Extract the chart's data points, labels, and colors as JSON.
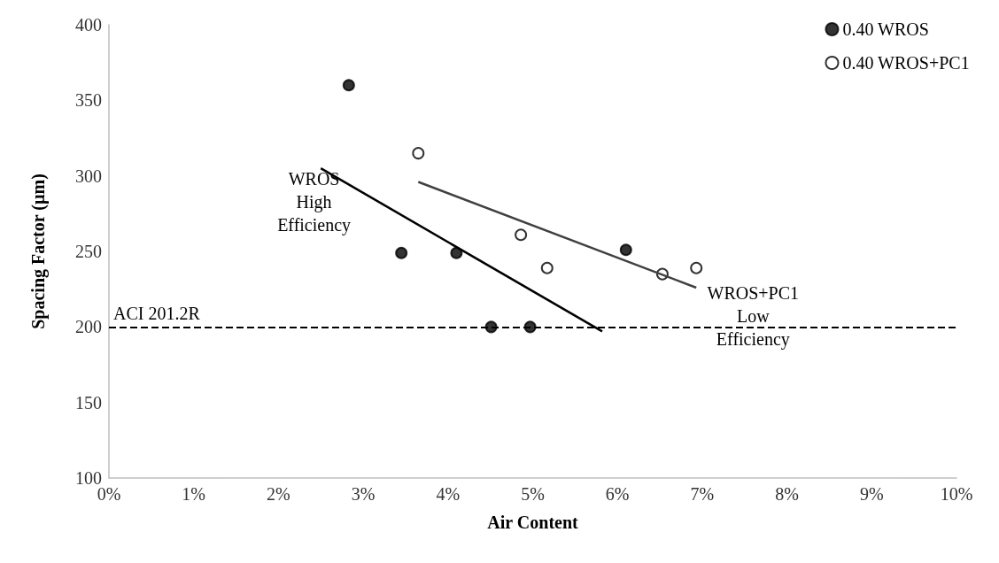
{
  "chart_data": {
    "type": "scatter",
    "xlabel": "Air Content",
    "ylabel": "Spacing Factor (µm)",
    "series": [
      {
        "name": "0.40 WROS",
        "color": "#000000",
        "marker": "circle",
        "x": [
          2.83,
          3.45,
          4.1,
          4.51,
          4.97,
          6.1
        ],
        "values": [
          360,
          249,
          249,
          200,
          200,
          251
        ]
      },
      {
        "name": "0.40 WROS+PC1",
        "color": "#ffffff",
        "marker": "circle",
        "x": [
          3.65,
          4.86,
          5.17,
          6.53,
          6.93
        ],
        "values": [
          315,
          261,
          239,
          235,
          239
        ]
      },
      {
        "type": "line",
        "color": "#000000",
        "marker": "none",
        "x": [
          2.5,
          5.82
        ],
        "values": [
          305,
          197
        ]
      },
      {
        "type": "line",
        "color": "#404040",
        "marker": "none",
        "x": [
          3.65,
          6.93
        ],
        "values": [
          296,
          226
        ]
      }
    ],
    "xlim": [
      0,
      10
    ],
    "xticks": [
      {
        "value": 0,
        "label": "0%"
      },
      {
        "value": 1,
        "label": "1%"
      },
      {
        "value": 2,
        "label": "2%"
      },
      {
        "value": 3,
        "label": "3%"
      },
      {
        "value": 4,
        "label": "4%"
      },
      {
        "value": 5,
        "label": "5%"
      },
      {
        "value": 6,
        "label": "6%"
      },
      {
        "value": 7,
        "label": "7%"
      },
      {
        "value": 8,
        "label": "8%"
      },
      {
        "value": 9,
        "label": "9%"
      },
      {
        "value": 10,
        "label": "10%"
      }
    ],
    "ylim": [
      100,
      400
    ],
    "yticks": [
      100,
      150,
      200,
      250,
      300,
      350,
      400
    ],
    "ref_lines": [
      {
        "axis": "y",
        "value": 200,
        "label": "ACI 201.2R",
        "line_style": "dashed",
        "color": "#000000"
      }
    ],
    "annotations": [
      "WROS\nHigh\nEfficiency",
      "WROS+PC1\nLow\nEfficiency"
    ],
    "legend": "top right",
    "grid": false
  }
}
